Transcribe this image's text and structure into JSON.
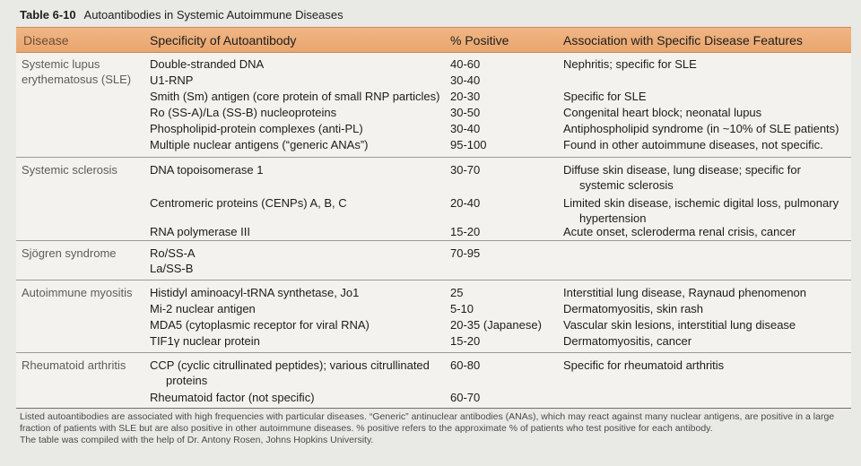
{
  "table": {
    "number": "Table 6-10",
    "title": "Autoantibodies in Systemic Autoimmune Diseases",
    "headers": {
      "disease": "Disease",
      "specificity": "Specificity of Autoantibody",
      "positive": "% Positive",
      "association": "Association with Specific Disease Features"
    },
    "groups": [
      {
        "disease": "Systemic lupus erythematosus (SLE)",
        "rows": [
          {
            "spec": "Double-stranded DNA",
            "pos": "40-60",
            "assoc": "Nephritis; specific for SLE"
          },
          {
            "spec": "U1-RNP",
            "pos": "30-40",
            "assoc": ""
          },
          {
            "spec": "Smith (Sm) antigen (core protein of small RNP particles)",
            "pos": "20-30",
            "assoc": "Specific for SLE"
          },
          {
            "spec": "Ro (SS-A)/La (SS-B) nucleoproteins",
            "pos": "30-50",
            "assoc": "Congenital heart block; neonatal lupus"
          },
          {
            "spec": "Phospholipid-protein complexes (anti-PL)",
            "pos": "30-40",
            "assoc": "Antiphospholipid syndrome (in ~10% of SLE patients)"
          },
          {
            "spec": "Multiple nuclear antigens (“generic ANAs”)",
            "pos": "95-100",
            "assoc": "Found in other autoimmune diseases, not specific."
          }
        ]
      },
      {
        "disease": "Systemic sclerosis",
        "rows": [
          {
            "spec": "DNA topoisomerase 1",
            "pos": "30-70",
            "assoc": "Diffuse skin disease, lung disease; specific for",
            "assoc2": "systemic sclerosis"
          },
          {
            "spec": "Centromeric proteins (CENPs) A, B, C",
            "pos": "20-40",
            "assoc": "Limited skin disease, ischemic digital loss, pulmonary",
            "assoc2": "hypertension"
          },
          {
            "spec": "RNA polymerase III",
            "pos": "15-20",
            "assoc": "Acute onset, scleroderma renal crisis, cancer"
          }
        ]
      },
      {
        "disease": "Sjögren syndrome",
        "rows": [
          {
            "spec": "Ro/SS-A",
            "pos": "70-95",
            "assoc": ""
          },
          {
            "spec": "La/SS-B",
            "pos": "",
            "assoc": ""
          }
        ]
      },
      {
        "disease": "Autoimmune myositis",
        "rows": [
          {
            "spec": "Histidyl aminoacyl-tRNA synthetase, Jo1",
            "pos": "25",
            "assoc": "Interstitial lung disease, Raynaud phenomenon"
          },
          {
            "spec": "Mi-2 nuclear antigen",
            "pos": "5-10",
            "assoc": "Dermatomyositis, skin rash"
          },
          {
            "spec": "MDA5 (cytoplasmic receptor for viral RNA)",
            "pos": "20-35 (Japanese)",
            "assoc": "Vascular skin lesions, interstitial lung disease"
          },
          {
            "spec": "TIF1γ nuclear protein",
            "pos": "15-20",
            "assoc": "Dermatomyositis, cancer"
          }
        ]
      },
      {
        "disease": "Rheumatoid arthritis",
        "rows": [
          {
            "spec": "CCP (cyclic citrullinated peptides); various citrullinated",
            "spec2": "proteins",
            "pos": "60-80",
            "assoc": "Specific for rheumatoid arthritis"
          },
          {
            "spec": "Rheumatoid factor (not specific)",
            "pos": "60-70",
            "assoc": ""
          }
        ]
      }
    ]
  },
  "footnote": {
    "line1": "Listed autoantibodies are associated with high frequencies with particular diseases. “Generic” antinuclear antibodies (ANAs), which may react against many nuclear antigens, are positive in a large fraction of patients with SLE but are also positive in other autoimmune diseases. % positive refers to the approximate % of patients who test positive for each antibody.",
    "line2": "The table was compiled with the help of Dr. Antony Rosen, Johns Hopkins University."
  },
  "colors": {
    "header_bg": "#eba872",
    "page_bg": "#e9e9e6"
  }
}
